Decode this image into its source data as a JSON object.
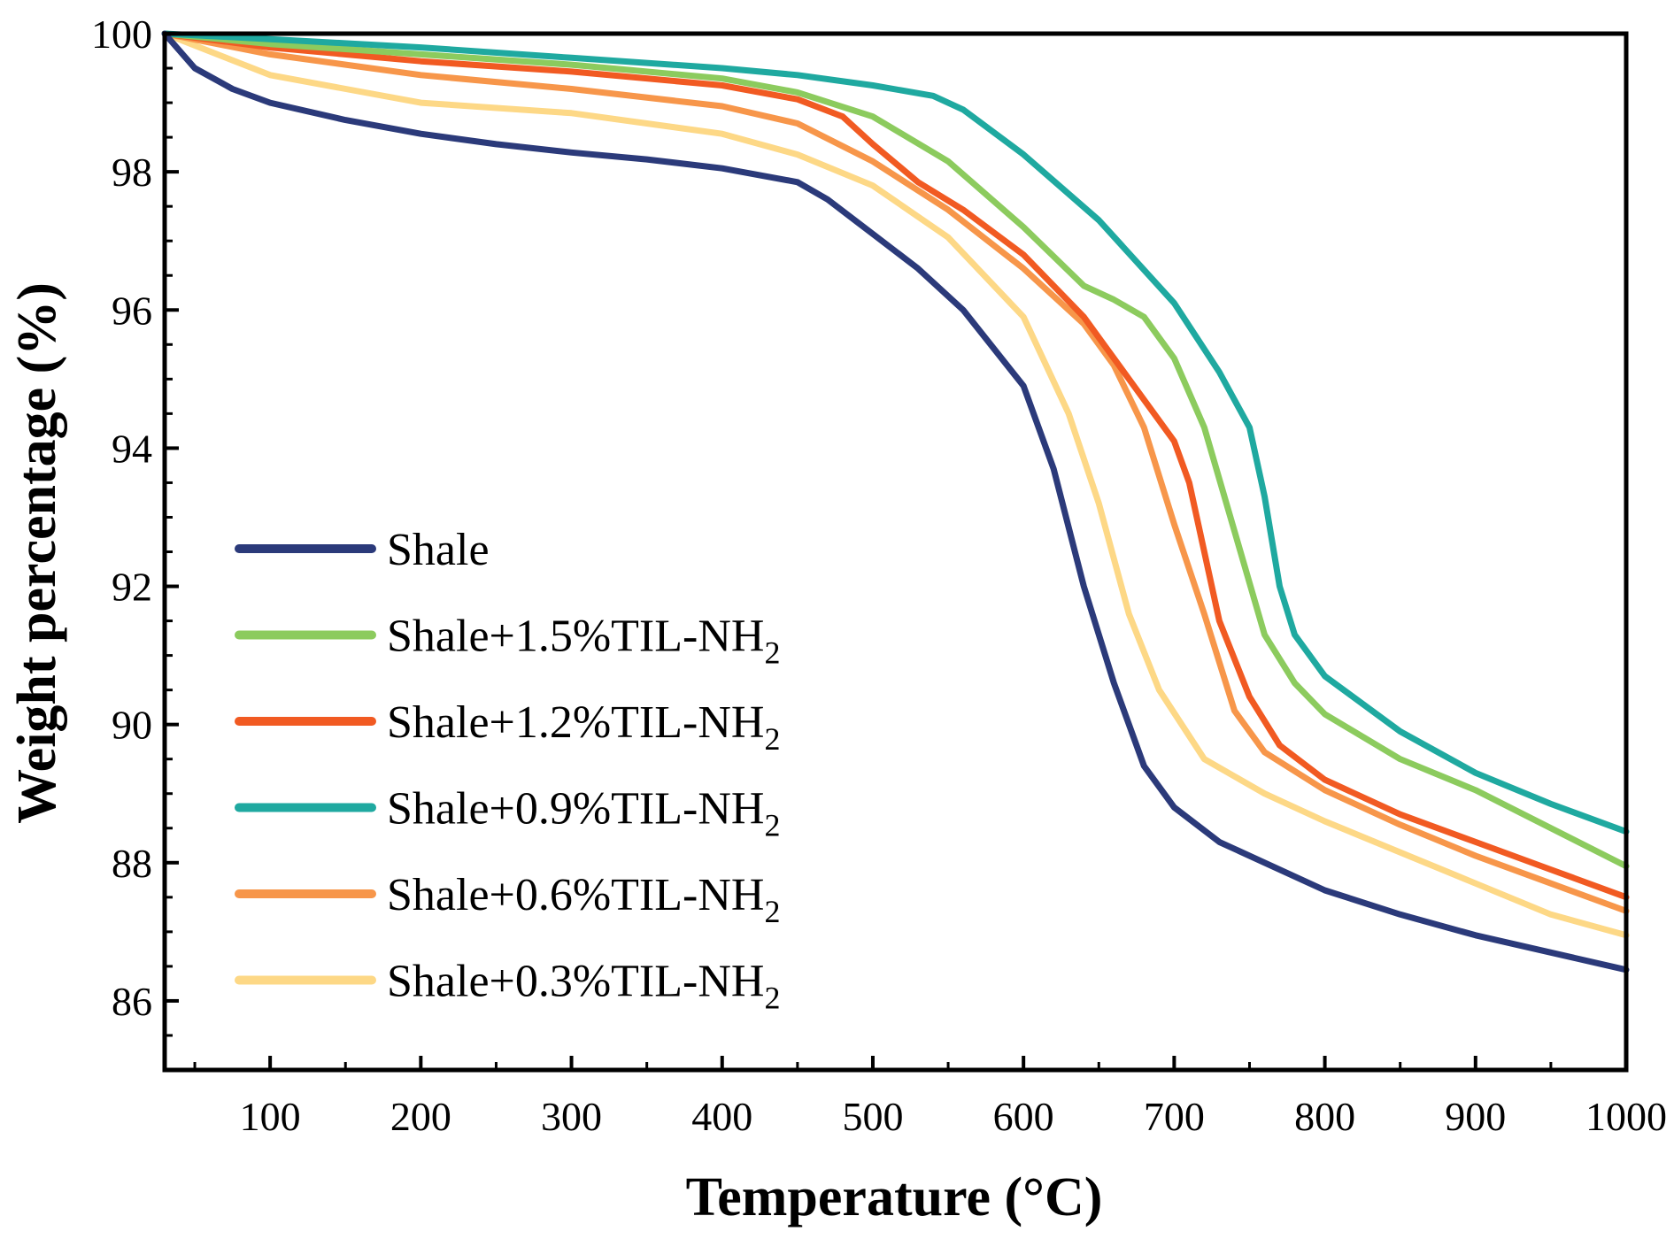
{
  "chart_data": {
    "type": "line",
    "xlabel": "Temperature (°C)",
    "ylabel": "Weight percentage (%)",
    "xlim": [
      30,
      1000
    ],
    "ylim": [
      85,
      100
    ],
    "xticks": [
      100,
      200,
      300,
      400,
      500,
      600,
      700,
      800,
      900,
      1000
    ],
    "yticks": [
      86,
      88,
      90,
      92,
      94,
      96,
      98,
      100
    ],
    "grid": false,
    "legend_position": "lower-left",
    "series": [
      {
        "name": "Shale",
        "label_main": "Shale",
        "label_sub": "",
        "color": "#2b3a7a",
        "x": [
          30,
          50,
          75,
          100,
          150,
          200,
          250,
          300,
          350,
          400,
          450,
          470,
          500,
          530,
          560,
          600,
          620,
          640,
          660,
          680,
          700,
          730,
          760,
          800,
          850,
          900,
          950,
          1000
        ],
        "y": [
          100,
          99.5,
          99.2,
          99.0,
          98.75,
          98.55,
          98.4,
          98.28,
          98.18,
          98.05,
          97.85,
          97.6,
          97.1,
          96.6,
          96.0,
          94.9,
          93.7,
          92.0,
          90.6,
          89.4,
          88.8,
          88.3,
          88.0,
          87.6,
          87.25,
          86.95,
          86.7,
          86.45
        ]
      },
      {
        "name": "Shale+1.5%TIL-NH2",
        "label_main": "Shale+1.5%TIL-NH",
        "label_sub": "2",
        "color": "#8ccb5e",
        "x": [
          30,
          100,
          200,
          300,
          400,
          450,
          500,
          550,
          600,
          640,
          660,
          680,
          700,
          720,
          740,
          760,
          780,
          800,
          850,
          900,
          950,
          1000
        ],
        "y": [
          100,
          99.85,
          99.7,
          99.55,
          99.35,
          99.15,
          98.8,
          98.15,
          97.2,
          96.35,
          96.15,
          95.9,
          95.3,
          94.3,
          92.8,
          91.3,
          90.6,
          90.15,
          89.5,
          89.05,
          88.5,
          87.95
        ]
      },
      {
        "name": "Shale+1.2%TIL-NH2",
        "label_main": "Shale+1.2%TIL-NH",
        "label_sub": "2",
        "color": "#f15a22",
        "x": [
          30,
          100,
          200,
          300,
          400,
          450,
          480,
          500,
          530,
          560,
          600,
          640,
          670,
          700,
          710,
          730,
          750,
          770,
          800,
          850,
          900,
          950,
          1000
        ],
        "y": [
          100,
          99.8,
          99.6,
          99.45,
          99.25,
          99.05,
          98.8,
          98.4,
          97.85,
          97.45,
          96.8,
          95.9,
          95.0,
          94.1,
          93.5,
          91.5,
          90.4,
          89.7,
          89.2,
          88.7,
          88.3,
          87.9,
          87.5
        ]
      },
      {
        "name": "Shale+0.9%TIL-NH2",
        "label_main": "Shale+0.9%TIL-NH",
        "label_sub": "2",
        "color": "#1fa9a0",
        "x": [
          30,
          100,
          200,
          300,
          400,
          450,
          500,
          540,
          560,
          600,
          650,
          700,
          730,
          750,
          760,
          770,
          780,
          800,
          850,
          900,
          950,
          1000
        ],
        "y": [
          100,
          99.92,
          99.8,
          99.65,
          99.5,
          99.4,
          99.25,
          99.1,
          98.9,
          98.25,
          97.3,
          96.1,
          95.1,
          94.3,
          93.3,
          92.0,
          91.3,
          90.7,
          89.9,
          89.3,
          88.85,
          88.45
        ]
      },
      {
        "name": "Shale+0.6%TIL-NH2",
        "label_main": "Shale+0.6%TIL-NH",
        "label_sub": "2",
        "color": "#f7964a",
        "x": [
          30,
          100,
          200,
          300,
          400,
          450,
          500,
          550,
          600,
          640,
          660,
          680,
          700,
          720,
          740,
          760,
          800,
          850,
          900,
          950,
          1000
        ],
        "y": [
          100,
          99.7,
          99.4,
          99.2,
          98.95,
          98.7,
          98.15,
          97.45,
          96.6,
          95.8,
          95.2,
          94.3,
          92.9,
          91.6,
          90.2,
          89.6,
          89.05,
          88.55,
          88.1,
          87.7,
          87.3
        ]
      },
      {
        "name": "Shale+0.3%TIL-NH2",
        "label_main": "Shale+0.3%TIL-NH",
        "label_sub": "2",
        "color": "#fdd886",
        "x": [
          30,
          100,
          200,
          300,
          400,
          450,
          500,
          550,
          600,
          630,
          650,
          670,
          690,
          720,
          760,
          800,
          850,
          900,
          950,
          1000
        ],
        "y": [
          100,
          99.4,
          99.0,
          98.85,
          98.55,
          98.25,
          97.8,
          97.05,
          95.9,
          94.5,
          93.2,
          91.6,
          90.5,
          89.5,
          89.0,
          88.6,
          88.15,
          87.7,
          87.25,
          86.95
        ]
      }
    ]
  }
}
